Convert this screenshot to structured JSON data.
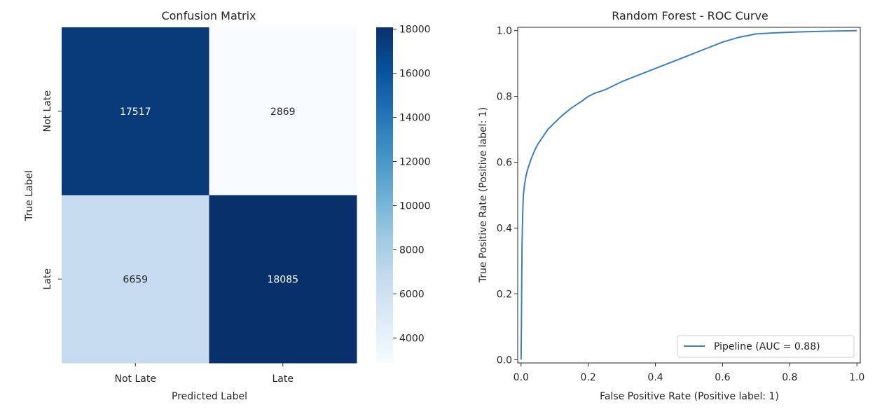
{
  "chart_data": [
    {
      "type": "heatmap",
      "title": "Confusion Matrix",
      "xlabel": "Predicted Label",
      "ylabel": "True Label",
      "x_categories": [
        "Not Late",
        "Late"
      ],
      "y_categories": [
        "Not Late",
        "Late"
      ],
      "values": [
        [
          17517,
          2869
        ],
        [
          6659,
          18085
        ]
      ],
      "colormap": "Blues",
      "colorbar": {
        "range": [
          2869,
          18085
        ],
        "ticks": [
          "4000",
          "6000",
          "8000",
          "10000",
          "12000",
          "14000",
          "16000",
          "18000"
        ]
      }
    },
    {
      "type": "line",
      "title": "Random Forest - ROC Curve",
      "xlabel": "False Positive Rate (Positive label: 1)",
      "ylabel": "True Positive Rate (Positive label: 1)",
      "xlim": [
        -0.01,
        1.01
      ],
      "ylim": [
        -0.01,
        1.01
      ],
      "xticks": [
        "0.0",
        "0.2",
        "0.4",
        "0.6",
        "0.8",
        "1.0"
      ],
      "yticks": [
        "0.0",
        "0.2",
        "0.4",
        "0.6",
        "0.8",
        "1.0"
      ],
      "legend_position": "lower-right",
      "series": [
        {
          "name": "Pipeline (AUC = 0.88)",
          "color": "#3d7fc1",
          "x": [
            0.0,
            0.001,
            0.002,
            0.003,
            0.005,
            0.007,
            0.01,
            0.015,
            0.02,
            0.03,
            0.04,
            0.05,
            0.06,
            0.08,
            0.1,
            0.12,
            0.15,
            0.18,
            0.2,
            0.22,
            0.25,
            0.26,
            0.3,
            0.35,
            0.4,
            0.45,
            0.5,
            0.55,
            0.6,
            0.65,
            0.7,
            0.75,
            0.8,
            0.9,
            1.0
          ],
          "y": [
            0.0,
            0.1,
            0.25,
            0.35,
            0.45,
            0.5,
            0.53,
            0.56,
            0.58,
            0.61,
            0.635,
            0.655,
            0.67,
            0.7,
            0.72,
            0.74,
            0.765,
            0.785,
            0.8,
            0.81,
            0.82,
            0.825,
            0.845,
            0.865,
            0.885,
            0.905,
            0.925,
            0.945,
            0.965,
            0.98,
            0.99,
            0.993,
            0.995,
            0.998,
            1.0
          ]
        }
      ]
    }
  ]
}
